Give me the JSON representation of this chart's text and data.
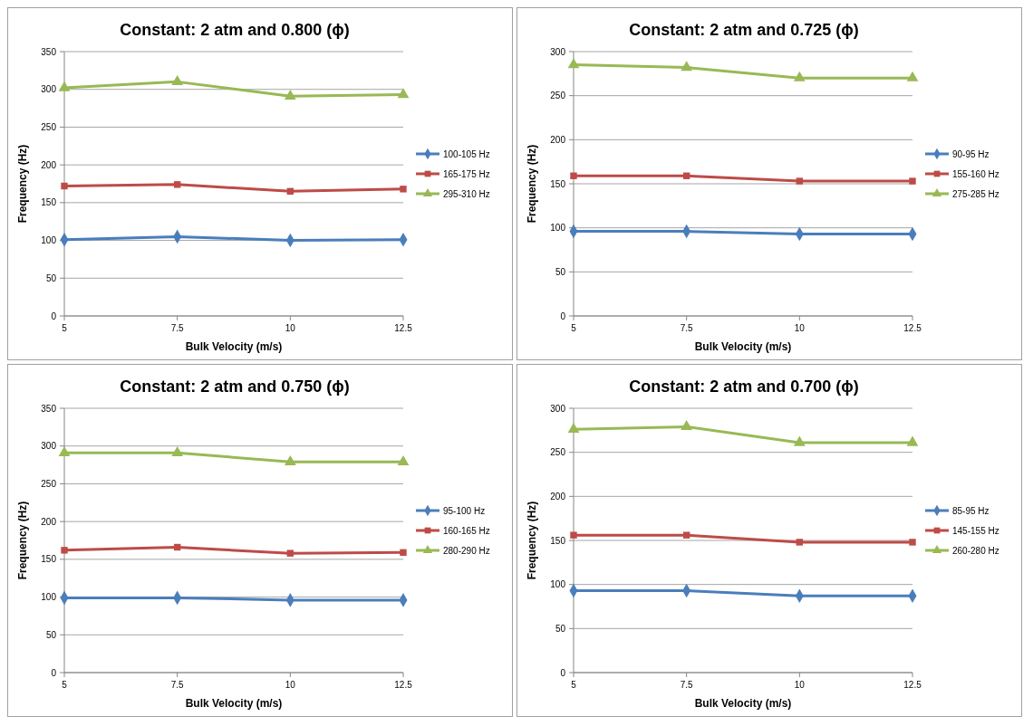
{
  "chart_data": [
    {
      "type": "line",
      "title": "Constant: 2 atm and 0.800 (ϕ)",
      "xlabel": "Bulk Velocity (m/s)",
      "ylabel": "Frequency (Hz)",
      "x": [
        5,
        7.5,
        10,
        12.5
      ],
      "xlim": [
        5,
        12.5
      ],
      "xticks": [
        5,
        7.5,
        10,
        12.5
      ],
      "ylim": [
        0,
        350
      ],
      "yticks": [
        0,
        50,
        100,
        150,
        200,
        250,
        300,
        350
      ],
      "grid": "y",
      "legend": "right",
      "series": [
        {
          "name": "100-105 Hz",
          "color": "#4a7ebb",
          "marker": "diamond",
          "values": [
            101,
            105,
            100,
            101
          ]
        },
        {
          "name": "165-175 Hz",
          "color": "#be4b48",
          "marker": "square",
          "values": [
            172,
            174,
            165,
            168
          ]
        },
        {
          "name": "295-310 Hz",
          "color": "#98b954",
          "marker": "triangle",
          "values": [
            302,
            310,
            291,
            293
          ]
        }
      ]
    },
    {
      "type": "line",
      "title": "Constant: 2 atm and 0.725 (ϕ)",
      "xlabel": "Bulk Velocity (m/s)",
      "ylabel": "Frequency (Hz)",
      "x": [
        5,
        7.5,
        10,
        12.5
      ],
      "xlim": [
        5,
        12.5
      ],
      "xticks": [
        5,
        7.5,
        10,
        12.5
      ],
      "ylim": [
        0,
        300
      ],
      "yticks": [
        0,
        50,
        100,
        150,
        200,
        250,
        300
      ],
      "grid": "y",
      "legend": "right",
      "series": [
        {
          "name": "90-95 Hz",
          "color": "#4a7ebb",
          "marker": "diamond",
          "values": [
            96,
            96,
            93,
            93
          ]
        },
        {
          "name": "155-160 Hz",
          "color": "#be4b48",
          "marker": "square",
          "values": [
            159,
            159,
            153,
            153
          ]
        },
        {
          "name": "275-285 Hz",
          "color": "#98b954",
          "marker": "triangle",
          "values": [
            285,
            282,
            270,
            270
          ]
        }
      ]
    },
    {
      "type": "line",
      "title": "Constant: 2 atm and 0.750 (ϕ)",
      "xlabel": "Bulk Velocity (m/s)",
      "ylabel": "Frequency (Hz)",
      "x": [
        5,
        7.5,
        10,
        12.5
      ],
      "xlim": [
        5,
        12.5
      ],
      "xticks": [
        5,
        7.5,
        10,
        12.5
      ],
      "ylim": [
        0,
        350
      ],
      "yticks": [
        0,
        50,
        100,
        150,
        200,
        250,
        300,
        350
      ],
      "grid": "y",
      "legend": "right",
      "series": [
        {
          "name": "95-100 Hz",
          "color": "#4a7ebb",
          "marker": "diamond",
          "values": [
            99,
            99,
            96,
            96
          ]
        },
        {
          "name": "160-165 Hz",
          "color": "#be4b48",
          "marker": "square",
          "values": [
            162,
            166,
            158,
            159
          ]
        },
        {
          "name": "280-290 Hz",
          "color": "#98b954",
          "marker": "triangle",
          "values": [
            291,
            291,
            279,
            279
          ]
        }
      ]
    },
    {
      "type": "line",
      "title": "Constant: 2 atm and 0.700 (ϕ)",
      "xlabel": "Bulk Velocity (m/s)",
      "ylabel": "Frequency (Hz)",
      "x": [
        5,
        7.5,
        10,
        12.5
      ],
      "xlim": [
        5,
        12.5
      ],
      "xticks": [
        5,
        7.5,
        10,
        12.5
      ],
      "ylim": [
        0,
        300
      ],
      "yticks": [
        0,
        50,
        100,
        150,
        200,
        250,
        300
      ],
      "grid": "y",
      "legend": "right",
      "series": [
        {
          "name": "85-95 Hz",
          "color": "#4a7ebb",
          "marker": "diamond",
          "values": [
            93,
            93,
            87,
            87
          ]
        },
        {
          "name": "145-155 Hz",
          "color": "#be4b48",
          "marker": "square",
          "values": [
            156,
            156,
            148,
            148
          ]
        },
        {
          "name": "260-280 Hz",
          "color": "#98b954",
          "marker": "triangle",
          "values": [
            276,
            279,
            261,
            261
          ]
        }
      ]
    }
  ]
}
